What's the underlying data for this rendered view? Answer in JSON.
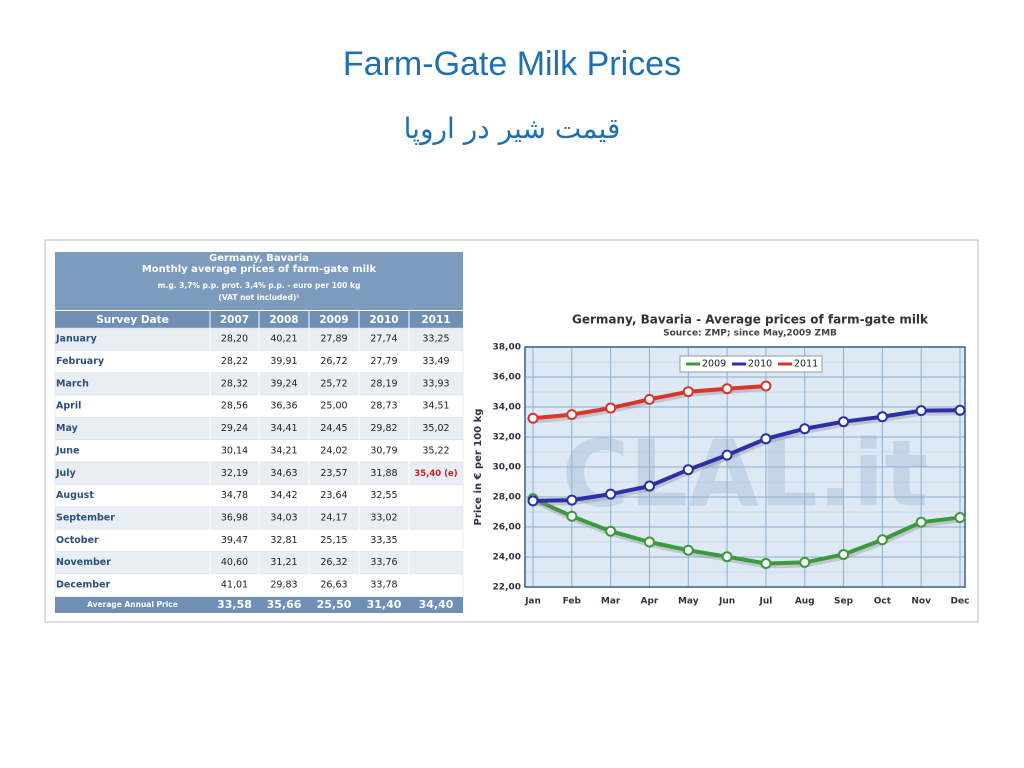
{
  "header": {
    "title": "Farm-Gate Milk Prices",
    "subtitle": "قیمت شیر در اروپا"
  },
  "table": {
    "caption": [
      "Germany, Bavaria",
      "Monthly average prices of farm-gate milk",
      "m.g. 3,7% p.p. prot. 3,4% p.p. - euro per 100 kg",
      "(VAT not included)¹"
    ],
    "columns": [
      "Survey Date",
      "2007",
      "2008",
      "2009",
      "2010",
      "2011"
    ],
    "rows": [
      [
        "January",
        "28,20",
        "40,21",
        "27,89",
        "27,74",
        "33,25"
      ],
      [
        "February",
        "28,22",
        "39,91",
        "26,72",
        "27,79",
        "33,49"
      ],
      [
        "March",
        "28,32",
        "39,24",
        "25,72",
        "28,19",
        "33,93"
      ],
      [
        "April",
        "28,56",
        "36,36",
        "25,00",
        "28,73",
        "34,51"
      ],
      [
        "May",
        "29,24",
        "34,41",
        "24,45",
        "29,82",
        "35,02"
      ],
      [
        "June",
        "30,14",
        "34,21",
        "24,02",
        "30,79",
        "35,22"
      ],
      [
        "July",
        "32,19",
        "34,63",
        "23,57",
        "31,88",
        "35,40 (e)"
      ],
      [
        "August",
        "34,78",
        "34,42",
        "23,64",
        "32,55",
        null
      ],
      [
        "September",
        "36,98",
        "34,03",
        "24,17",
        "33,02",
        null
      ],
      [
        "October",
        "39,47",
        "32,81",
        "25,15",
        "33,35",
        null
      ],
      [
        "November",
        "40,60",
        "31,21",
        "26,32",
        "33,76",
        null
      ],
      [
        "December",
        "41,01",
        "29,83",
        "26,63",
        "33,78",
        null
      ]
    ],
    "footer": [
      "Average Annual Price",
      "33,58",
      "35,66",
      "25,50",
      "31,40",
      "34,40"
    ]
  },
  "chart_data": {
    "type": "line",
    "title": "Germany, Bavaria - Average prices of farm-gate milk",
    "subtitle": "Source: ZMP; since May,2009 ZMB",
    "y_label": "Price in € per 100 kg",
    "watermark": "CLAL.it",
    "categories": [
      "Jan",
      "Feb",
      "Mar",
      "Apr",
      "May",
      "Jun",
      "Jul",
      "Aug",
      "Sep",
      "Oct",
      "Nov",
      "Dec"
    ],
    "series": [
      {
        "name": "2009",
        "color": "#3c9a3c",
        "values": [
          27.89,
          26.72,
          25.72,
          25.0,
          24.45,
          24.02,
          23.57,
          23.64,
          24.17,
          25.15,
          26.32,
          26.63
        ]
      },
      {
        "name": "2010",
        "color": "#2b2fa8",
        "values": [
          27.74,
          27.79,
          28.19,
          28.73,
          29.82,
          30.79,
          31.88,
          32.55,
          33.02,
          33.35,
          33.76,
          33.78
        ]
      },
      {
        "name": "2011",
        "color": "#d9362a",
        "values": [
          33.25,
          33.49,
          33.93,
          34.51,
          35.02,
          35.22,
          35.4,
          null,
          null,
          null,
          null,
          null
        ]
      }
    ],
    "ylim": [
      22,
      38
    ],
    "yticks": [
      {
        "value": 22,
        "label": "22,00"
      },
      {
        "value": 24,
        "label": "24,00"
      },
      {
        "value": 26,
        "label": "26,00"
      },
      {
        "value": 28,
        "label": "28,00"
      },
      {
        "value": 30,
        "label": "30,00"
      },
      {
        "value": 32,
        "label": "32,00"
      },
      {
        "value": 34,
        "label": "34,00"
      },
      {
        "value": 36,
        "label": "36,00"
      },
      {
        "value": 38,
        "label": "38,00"
      }
    ],
    "grid": true,
    "legend": "top-left"
  }
}
